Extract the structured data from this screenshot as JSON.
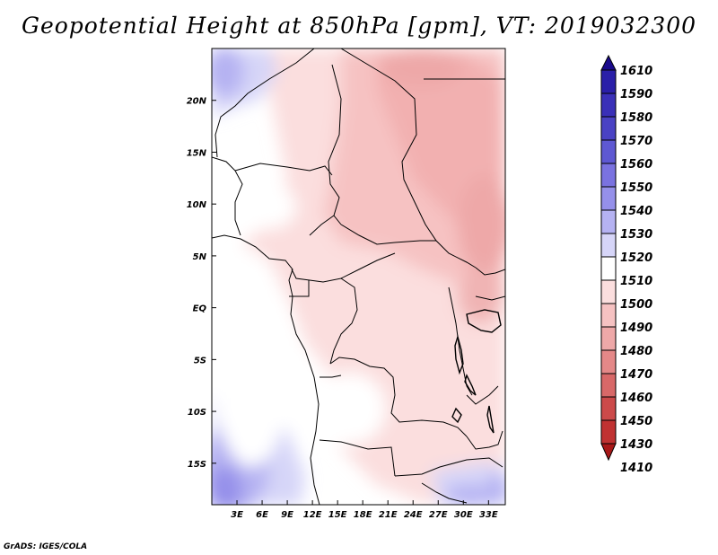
{
  "title": "Geopotential Height at 850hPa [gpm], VT: 2019032300",
  "credit": "GrADS: IGES/COLA",
  "map": {
    "lon_labels": [
      "3E",
      "6E",
      "9E",
      "12E",
      "15E",
      "18E",
      "21E",
      "24E",
      "27E",
      "30E",
      "33E"
    ],
    "lon_values": [
      3,
      6,
      9,
      12,
      15,
      18,
      21,
      24,
      27,
      30,
      33
    ],
    "lat_labels": [
      "20N",
      "15N",
      "10N",
      "5N",
      "EQ",
      "5S",
      "10S",
      "15S"
    ],
    "lat_values": [
      20,
      15,
      10,
      5,
      0,
      -5,
      -10,
      -15
    ],
    "lon_range": [
      0,
      35
    ],
    "lat_range": [
      -19,
      25
    ]
  },
  "colorbar": {
    "levels": [
      "1610",
      "1590",
      "1580",
      "1570",
      "1560",
      "1550",
      "1540",
      "1530",
      "1520",
      "1510",
      "1500",
      "1490",
      "1480",
      "1470",
      "1460",
      "1450",
      "1430",
      "1410"
    ],
    "colors": [
      "#1a0a8c",
      "#2a1fa8",
      "#3a30b8",
      "#4a42c4",
      "#5e58d2",
      "#7a72e0",
      "#9590ea",
      "#b5b2f2",
      "#d6d5f8",
      "#ffffff",
      "#fbdede",
      "#f6c2c2",
      "#eea8a8",
      "#e48888",
      "#d86868",
      "#cc4a4a",
      "#c03232",
      "#a81818"
    ]
  }
}
